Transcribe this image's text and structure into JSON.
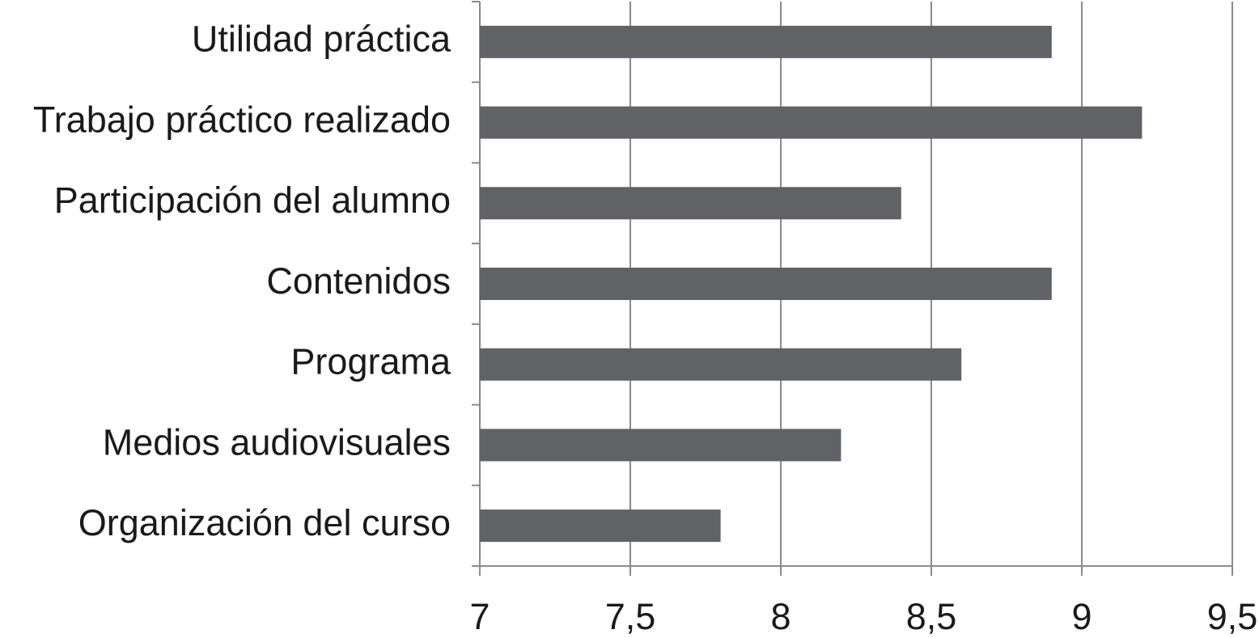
{
  "chart_data": {
    "type": "bar",
    "orientation": "horizontal",
    "categories": [
      "Utilidad práctica",
      "Trabajo práctico realizado",
      "Participación del alumno",
      "Contenidos",
      "Programa",
      "Medios audiovisuales",
      "Organización del curso"
    ],
    "values": [
      8.9,
      9.2,
      8.4,
      8.9,
      8.6,
      8.2,
      7.8
    ],
    "color": "#616266",
    "xlim": [
      7,
      9.5
    ],
    "xticks": [
      7,
      {
        "value": 7.5,
        "label": "7,5"
      },
      8,
      {
        "value": 8.5,
        "label": "8,5"
      },
      9,
      {
        "value": 9.5,
        "label": "9,5"
      }
    ],
    "grid": true
  }
}
